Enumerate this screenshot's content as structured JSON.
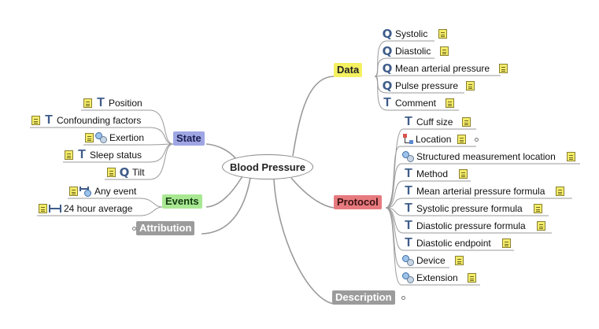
{
  "root": {
    "label": "Blood Pressure"
  },
  "groups": {
    "data": {
      "label": "Data",
      "color": "#f4f060"
    },
    "protocol": {
      "label": "Protocol",
      "color": "#e77a7f"
    },
    "state": {
      "label": "State",
      "color": "#9fa6e3"
    },
    "events": {
      "label": "Events",
      "color": "#a9e893"
    },
    "attribution": {
      "label": "Attribution",
      "color": "#9b9b9b"
    },
    "description": {
      "label": "Description",
      "color": "#9b9b9b"
    }
  },
  "data_items": [
    {
      "label": "Systolic",
      "icon": "quantity-icon",
      "note": true
    },
    {
      "label": "Diastolic",
      "icon": "quantity-icon",
      "note": true
    },
    {
      "label": "Mean arterial pressure",
      "icon": "quantity-icon",
      "note": true
    },
    {
      "label": "Pulse pressure",
      "icon": "quantity-icon",
      "note": true
    },
    {
      "label": "Comment",
      "icon": "text-icon",
      "note": true
    }
  ],
  "protocol_items": [
    {
      "label": "Cuff size",
      "icon": "text-icon",
      "note": true
    },
    {
      "label": "Location",
      "icon": "location-icon",
      "note": true
    },
    {
      "label": "Structured measurement location",
      "icon": "slot-icon",
      "note": true
    },
    {
      "label": "Method",
      "icon": "text-icon",
      "note": true
    },
    {
      "label": "Mean arterial pressure formula",
      "icon": "text-icon",
      "note": true
    },
    {
      "label": "Systolic pressure formula",
      "icon": "text-icon",
      "note": true
    },
    {
      "label": "Diastolic pressure formula",
      "icon": "text-icon",
      "note": true
    },
    {
      "label": "Diastolic endpoint",
      "icon": "text-icon",
      "note": true
    },
    {
      "label": "Device",
      "icon": "slot-icon",
      "note": true
    },
    {
      "label": "Extension",
      "icon": "slot-icon",
      "note": true
    }
  ],
  "state_items": [
    {
      "label": "Position",
      "icon": "text-icon",
      "note": true
    },
    {
      "label": "Confounding factors",
      "icon": "text-icon",
      "note": true
    },
    {
      "label": "Exertion",
      "icon": "slot-icon",
      "note": true
    },
    {
      "label": "Sleep status",
      "icon": "text-icon",
      "note": true
    },
    {
      "label": "Tilt",
      "icon": "quantity-icon",
      "note": true
    }
  ],
  "events_items": [
    {
      "label": "Any event",
      "icon": "any-event-icon",
      "note": true
    },
    {
      "label": "24 hour average",
      "icon": "interval-icon",
      "note": true
    }
  ],
  "glyphs": {
    "text_icon": "T",
    "quantity_icon": "Q"
  }
}
